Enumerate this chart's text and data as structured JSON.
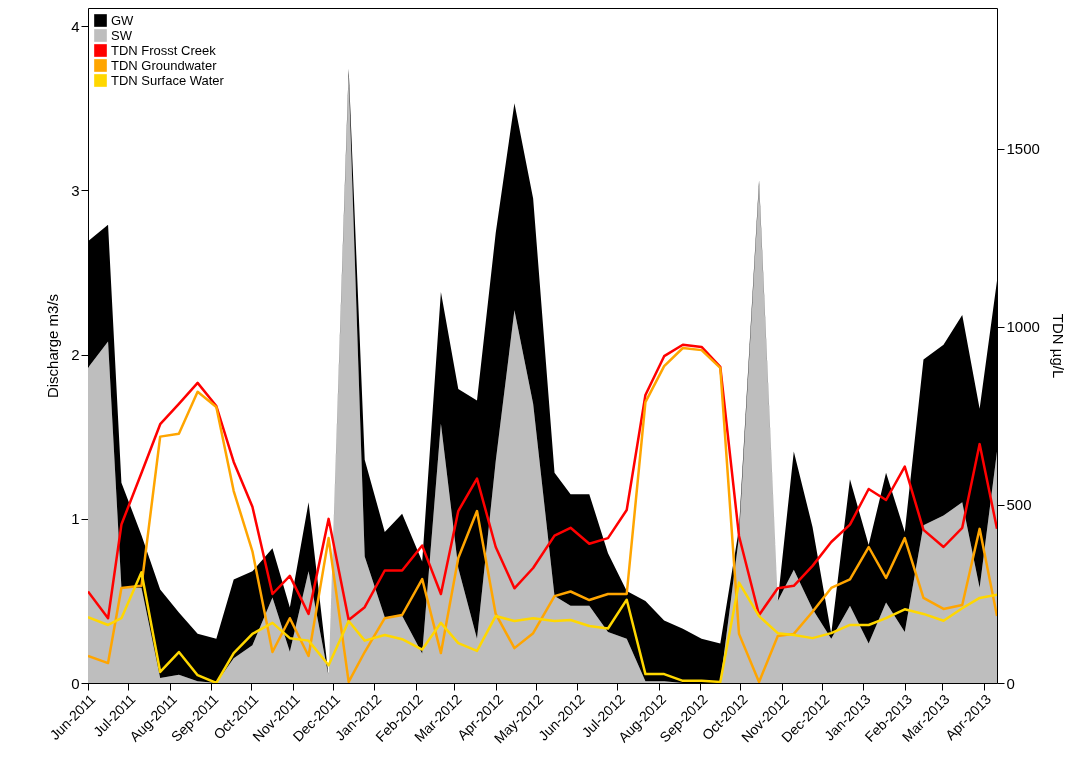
{
  "chart_data": {
    "type": "area",
    "stacked": true,
    "legend": "top left",
    "ylabel": "Discharge m3/s",
    "y2label": "TDN µg/L",
    "x": [
      "2011-06-01",
      "2011-06-16",
      "2011-06-26",
      "2011-07-11",
      "2011-07-25",
      "2011-08-08",
      "2011-08-22",
      "2011-09-05",
      "2011-09-18",
      "2011-10-02",
      "2011-10-17",
      "2011-10-30",
      "2011-11-13",
      "2011-11-28",
      "2011-12-13",
      "2011-12-25",
      "2012-01-09",
      "2012-01-22",
      "2012-02-06",
      "2012-02-20",
      "2012-03-04",
      "2012-03-18",
      "2012-04-01",
      "2012-04-15",
      "2012-04-29",
      "2012-05-15",
      "2012-05-27",
      "2012-06-10",
      "2012-06-24",
      "2012-07-08",
      "2012-07-22",
      "2012-08-05",
      "2012-08-19",
      "2012-09-02",
      "2012-09-16",
      "2012-09-30",
      "2012-10-15",
      "2012-10-29",
      "2012-11-10",
      "2012-11-24",
      "2012-12-08",
      "2012-12-22",
      "2013-01-05",
      "2013-01-18",
      "2013-02-01",
      "2013-02-15",
      "2013-03-02",
      "2013-03-16",
      "2013-03-29",
      "2013-04-11"
    ],
    "xlim": [
      "2011-06-01",
      "2013-04-11"
    ],
    "xticks": [
      {
        "value": "2011-06-01",
        "label": "Jun-2011"
      },
      {
        "value": "2011-07-01",
        "label": "Jul-2011"
      },
      {
        "value": "2011-08-01",
        "label": "Aug-2011"
      },
      {
        "value": "2011-09-01",
        "label": "Sep-2011"
      },
      {
        "value": "2011-10-01",
        "label": "Oct-2011"
      },
      {
        "value": "2011-11-01",
        "label": "Nov-2011"
      },
      {
        "value": "2011-12-01",
        "label": "Dec-2011"
      },
      {
        "value": "2012-01-01",
        "label": "Jan-2012"
      },
      {
        "value": "2012-02-01",
        "label": "Feb-2012"
      },
      {
        "value": "2012-03-01",
        "label": "Mar-2012"
      },
      {
        "value": "2012-04-01",
        "label": "Apr-2012"
      },
      {
        "value": "2012-05-01",
        "label": "May-2012"
      },
      {
        "value": "2012-06-01",
        "label": "Jun-2012"
      },
      {
        "value": "2012-07-01",
        "label": "Jul-2012"
      },
      {
        "value": "2012-08-01",
        "label": "Aug-2012"
      },
      {
        "value": "2012-09-01",
        "label": "Sep-2012"
      },
      {
        "value": "2012-10-01",
        "label": "Oct-2012"
      },
      {
        "value": "2012-11-01",
        "label": "Nov-2012"
      },
      {
        "value": "2012-12-01",
        "label": "Dec-2012"
      },
      {
        "value": "2013-01-01",
        "label": "Jan-2013"
      },
      {
        "value": "2013-02-01",
        "label": "Feb-2013"
      },
      {
        "value": "2013-03-01",
        "label": "Mar-2013"
      },
      {
        "value": "2013-04-01",
        "label": "Apr-2013"
      }
    ],
    "ylim": [
      0,
      4.11
    ],
    "yticks": [
      0,
      1,
      2,
      3,
      4
    ],
    "y2lim": [
      0,
      1896
    ],
    "y2ticks": [
      0,
      500,
      1000,
      1500
    ],
    "series": [
      {
        "name": "SW",
        "color": "#bebebe",
        "values": [
          1.92,
          2.08,
          0.58,
          0.58,
          0.03,
          0.05,
          0.01,
          0.0,
          0.15,
          0.23,
          0.52,
          0.19,
          0.68,
          0.04,
          3.7,
          0.77,
          0.4,
          0.41,
          0.18,
          1.58,
          0.7,
          0.27,
          1.35,
          2.27,
          1.7,
          0.53,
          0.47,
          0.47,
          0.31,
          0.27,
          0.01,
          0.01,
          0.0,
          0.0,
          0.0,
          0.89,
          3.03,
          0.5,
          0.69,
          0.45,
          0.27,
          0.47,
          0.24,
          0.49,
          0.31,
          0.96,
          1.02,
          1.1,
          0.58,
          1.41
        ]
      },
      {
        "name": "GW",
        "color": "#000000",
        "values": [
          0.77,
          0.71,
          0.64,
          0.32,
          0.54,
          0.38,
          0.29,
          0.27,
          0.48,
          0.45,
          0.3,
          0.27,
          0.42,
          0.0,
          0.04,
          0.59,
          0.52,
          0.62,
          0.56,
          0.8,
          1.09,
          1.45,
          1.39,
          1.26,
          1.25,
          0.75,
          0.68,
          0.68,
          0.48,
          0.29,
          0.49,
          0.37,
          0.33,
          0.27,
          0.24,
          0.05,
          0.03,
          0.0,
          0.72,
          0.5,
          0.03,
          0.77,
          0.6,
          0.79,
          0.61,
          1.01,
          1.04,
          1.14,
          1.09,
          1.04
        ]
      },
      {
        "name": "TDN Frosst Creek",
        "type": "line",
        "axis": "y2",
        "color": "#ff0000",
        "values": [
          257,
          182,
          445,
          590,
          727,
          784,
          843,
          778,
          621,
          495,
          250,
          301,
          194,
          461,
          177,
          213,
          316,
          316,
          386,
          250,
          483,
          574,
          382,
          266,
          323,
          414,
          436,
          391,
          407,
          486,
          809,
          918,
          950,
          944,
          888,
          413,
          191,
          266,
          273,
          329,
          396,
          445,
          545,
          514,
          608,
          430,
          382,
          436,
          671,
          433
        ]
      },
      {
        "name": "TDN Groundwater",
        "type": "line",
        "axis": "y2",
        "color": "#ffa500",
        "values": [
          76,
          56,
          267,
          273,
          692,
          700,
          818,
          775,
          539,
          370,
          87,
          182,
          76,
          407,
          3,
          87,
          182,
          191,
          292,
          84,
          351,
          483,
          194,
          98,
          140,
          244,
          257,
          233,
          250,
          250,
          789,
          890,
          941,
          935,
          885,
          138,
          3,
          132,
          138,
          200,
          267,
          291,
          382,
          295,
          407,
          239,
          208,
          219,
          433,
          188
        ]
      },
      {
        "name": "TDN Surface Water",
        "type": "line",
        "axis": "y2",
        "color": "#ffd700",
        "values": [
          185,
          163,
          182,
          311,
          31,
          87,
          22,
          0,
          84,
          138,
          169,
          126,
          119,
          50,
          174,
          119,
          135,
          123,
          94,
          169,
          112,
          90,
          188,
          174,
          182,
          174,
          177,
          160,
          153,
          234,
          25,
          25,
          6,
          6,
          3,
          282,
          188,
          140,
          135,
          126,
          140,
          163,
          163,
          182,
          207,
          194,
          175,
          210,
          239,
          248
        ]
      }
    ]
  }
}
